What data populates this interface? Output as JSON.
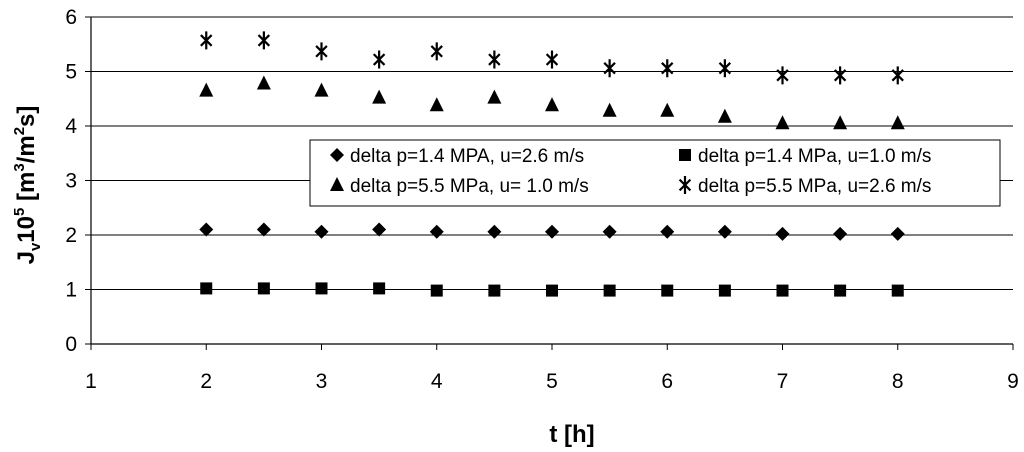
{
  "chart_data": {
    "type": "scatter",
    "title": "",
    "xlabel": "t [h]",
    "ylabel": {
      "base": "J",
      "base_sub": "v",
      "mult": "10",
      "mult_sup": "5",
      "open": " [m",
      "unit_sup1": "3",
      "mid": "/m",
      "unit_sup2": "2",
      "close": "s]"
    },
    "xlim": [
      1,
      9
    ],
    "ylim": [
      0,
      6
    ],
    "xticks": [
      "1",
      "2",
      "3",
      "4",
      "5",
      "6",
      "7",
      "8",
      "9"
    ],
    "yticks": [
      "0",
      "1",
      "2",
      "3",
      "4",
      "5",
      "6"
    ],
    "grid": "horizontal",
    "legend_position": "center-right",
    "x": [
      2,
      2.5,
      3,
      3.5,
      4,
      4.5,
      5,
      5.5,
      6,
      6.5,
      7,
      7.5,
      8
    ],
    "series": [
      {
        "name": "delta p=1.4 MPA, u=2.6 m/s",
        "marker": "diamond",
        "values": [
          2.1,
          2.1,
          2.06,
          2.1,
          2.06,
          2.06,
          2.06,
          2.06,
          2.06,
          2.06,
          2.02,
          2.02,
          2.02
        ]
      },
      {
        "name": "delta p=1.4 MPa, u=1.0 m/s",
        "marker": "square",
        "values": [
          1.02,
          1.02,
          1.02,
          1.02,
          0.98,
          0.98,
          0.98,
          0.98,
          0.98,
          0.98,
          0.98,
          0.98,
          0.98
        ]
      },
      {
        "name": "delta p=5.5 MPa, u= 1.0 m/s",
        "marker": "triangle",
        "values": [
          4.65,
          4.78,
          4.65,
          4.52,
          4.38,
          4.52,
          4.38,
          4.28,
          4.28,
          4.17,
          4.05,
          4.05,
          4.05
        ]
      },
      {
        "name": "delta p=5.5 MPa, u=2.6 m/s",
        "marker": "asterisk",
        "values": [
          5.57,
          5.57,
          5.37,
          5.22,
          5.37,
          5.22,
          5.22,
          5.06,
          5.06,
          5.06,
          4.93,
          4.93,
          4.93
        ]
      }
    ]
  }
}
